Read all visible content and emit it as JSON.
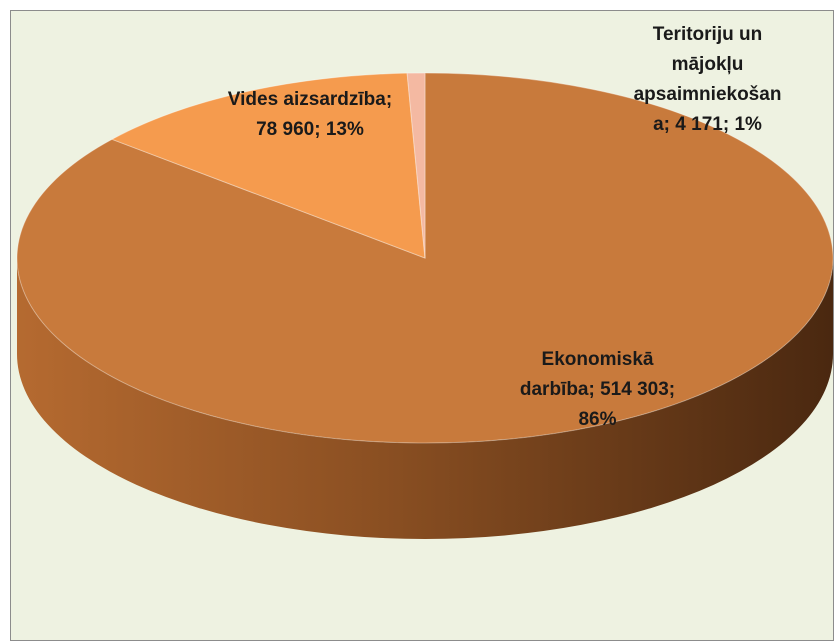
{
  "chart_data": {
    "type": "pie3d",
    "categories": [
      "Ekonomiskā darbība",
      "Vides aizsardzība",
      "Teritoriju un mājokļu apsaimniekošana"
    ],
    "values": [
      514303,
      78960,
      4171
    ],
    "value_labels": [
      "514 303",
      "78 960",
      "4 171"
    ],
    "percent_labels": [
      "86%",
      "13%",
      "1%"
    ],
    "separator": "; ",
    "colors": [
      "#c87a3c",
      "#f59b4e",
      "#f4b9a2"
    ]
  }
}
